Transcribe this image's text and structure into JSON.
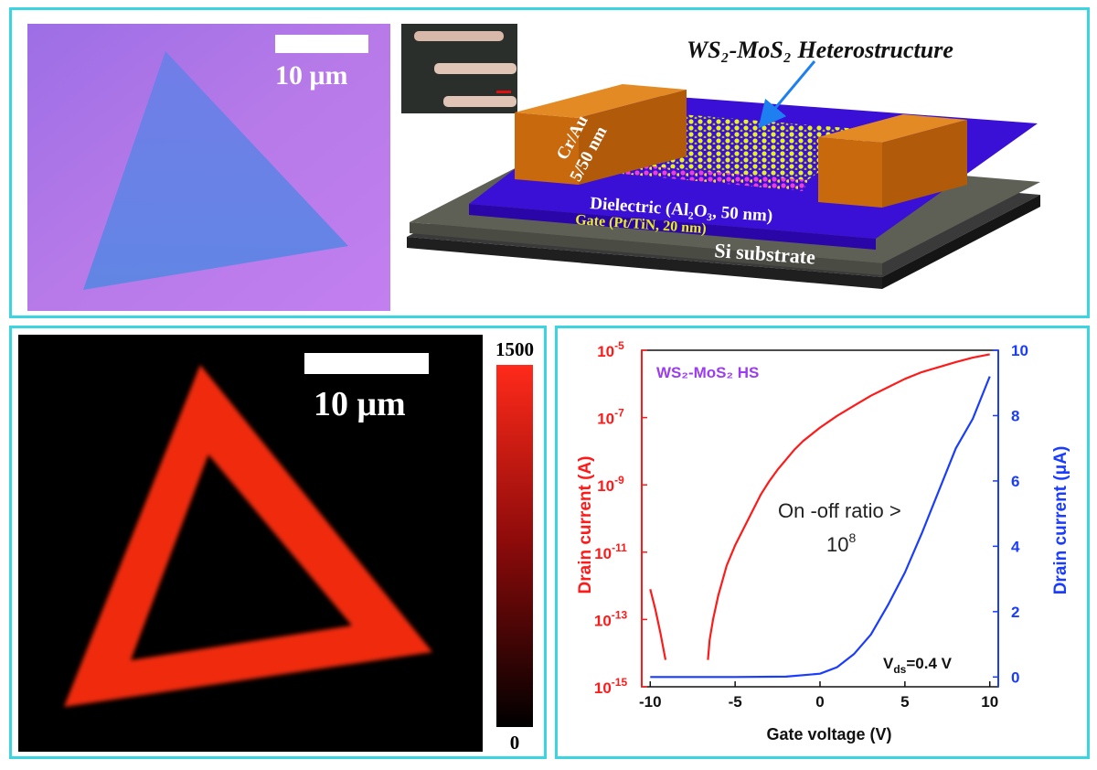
{
  "optical_image": {
    "scale_bar_label": "10 μm"
  },
  "device_schematic": {
    "title": "WS₂-MoS₂ Heterostructure",
    "contact_label_line1": "Cr/Au",
    "contact_label_line2": "5/50 nm",
    "dielectric_label": "Dielectric (Al₂O₃, 50 nm)",
    "gate_label": "Gate (Pt/TiN, 20 nm)",
    "substrate_label": "Si substrate"
  },
  "pl_map": {
    "scale_bar_label": "10 μm",
    "colorbar_max": "1500",
    "colorbar_min": "0"
  },
  "chart_data": {
    "type": "line",
    "legend_text": "WS₂-MoS₂ HS",
    "annotation_line1": "On -off ratio >",
    "annotation_line2_base": "10",
    "annotation_line2_exp": "8",
    "vds_label_prefix": "V",
    "vds_label_sub": "ds",
    "vds_label_suffix": "=0.4 V",
    "xlabel": "Gate voltage (V)",
    "ylabel_left": "Drain current (A)",
    "ylabel_right": "Drain current (μA)",
    "xlim": [
      -10.5,
      10.5
    ],
    "ylim_left_log10": [
      -15,
      -5
    ],
    "ylim_right": [
      -0.3,
      10
    ],
    "x_ticks": [
      -10,
      -5,
      0,
      5,
      10
    ],
    "x_tick_labels": [
      "-10",
      "-5",
      "0",
      "5",
      "10"
    ],
    "left_ticks_exp": [
      -15,
      -13,
      -11,
      -9,
      -7,
      -5
    ],
    "left_tick_base": "10",
    "left_tick_exps": [
      "-15",
      "-13",
      "-11",
      "-9",
      "-7",
      "-5"
    ],
    "right_ticks": [
      0,
      2,
      4,
      6,
      8,
      10
    ],
    "right_tick_labels": [
      "0",
      "2",
      "4",
      "6",
      "8",
      "10"
    ],
    "colors": {
      "log_series": "#ff1a1a",
      "linear_series": "#1a3cff",
      "legend": "#9b3cf0"
    },
    "series": [
      {
        "axis": "left_log",
        "segments": [
          {
            "x": [
              -10,
              -9.7,
              -9.4,
              -9.1
            ],
            "log10_y": [
              -12.1,
              -12.7,
              -13.4,
              -14.2
            ]
          },
          {
            "x": [
              -6.6,
              -6.5,
              -6.3,
              -6,
              -5.5,
              -5,
              -4.5,
              -4,
              -3.5,
              -3,
              -2.5,
              -2,
              -1.5,
              -1,
              0,
              1,
              2,
              3,
              4,
              5,
              6,
              7,
              8,
              9,
              10
            ],
            "log10_y": [
              -14.2,
              -13.6,
              -13.0,
              -12.3,
              -11.4,
              -10.8,
              -10.3,
              -9.8,
              -9.3,
              -8.9,
              -8.55,
              -8.25,
              -7.95,
              -7.7,
              -7.3,
              -6.95,
              -6.65,
              -6.35,
              -6.1,
              -5.85,
              -5.65,
              -5.5,
              -5.35,
              -5.22,
              -5.12
            ]
          }
        ]
      },
      {
        "axis": "right_linear",
        "segments": [
          {
            "x": [
              -10,
              -5,
              -2,
              0,
              1,
              2,
              3,
              4,
              5,
              6,
              7,
              8,
              9,
              10
            ],
            "y": [
              0.0,
              0.0,
              0.01,
              0.1,
              0.3,
              0.7,
              1.3,
              2.2,
              3.2,
              4.4,
              5.7,
              7.0,
              7.9,
              9.2
            ]
          }
        ]
      }
    ]
  }
}
